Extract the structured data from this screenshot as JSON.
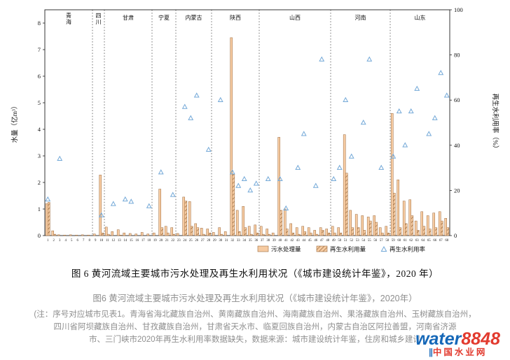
{
  "figure": {
    "caption_main": "图 6  黄河流域主要城市污水处理及再生水利用状况（《城市建设统计年鉴》，2020 年）",
    "caption_secondary": "图6 黄河流域主要城市污水处理及再生水利用状况（《城市建设统计年鉴》，2020年）",
    "note_lines": [
      "(注：序号对应城市见表1。青海省海北藏族自治州、黄南藏族自治州、海南藏族自治州、果洛藏族自治州、玉树藏族自治州，",
      "四川省阿坝藏族自治州、甘孜藏族自治州，甘肃省天水市、临夏回族自治州，内蒙古自治区阿拉善盟，河南省济源",
      "市、三门峡市2020年再生水利用率数据缺失，数据来源：城市建设统计年鉴，住房和城乡建设"
    ]
  },
  "watermark": {
    "brand_blue": "water",
    "brand_red": "8848",
    "bars": "∥",
    "tagline": "中国水业网",
    "color_blue": "#1668b8",
    "color_red": "#e23a2e"
  },
  "chart_data": {
    "type": "bar",
    "title": "",
    "ylabel_left": "水量（亿m³）",
    "ylabel_right": "再生水利用率（%）",
    "ylim_left": [
      0,
      8
    ],
    "ylim_right": [
      0,
      100
    ],
    "left_ticks": [
      0,
      1,
      2,
      3,
      4,
      5,
      6,
      7,
      8
    ],
    "right_ticks": [
      0,
      20,
      40,
      60,
      80,
      100
    ],
    "grid": false,
    "legend_position": "bottom",
    "x": [
      1,
      2,
      3,
      4,
      5,
      6,
      7,
      8,
      9,
      10,
      11,
      12,
      13,
      14,
      15,
      16,
      17,
      18,
      19,
      20,
      21,
      22,
      23,
      24,
      25,
      26,
      27,
      28,
      29,
      30,
      31,
      32,
      33,
      34,
      35,
      36,
      37,
      38,
      39,
      40,
      41,
      42,
      43,
      44,
      45,
      46,
      47,
      48,
      49,
      50,
      51,
      52,
      53,
      54,
      55,
      56,
      57,
      58,
      59,
      60,
      61,
      62,
      63,
      64,
      65,
      66,
      67,
      68
    ],
    "provinces": [
      {
        "name": "青海",
        "start": 1,
        "end": 8,
        "vertical": true
      },
      {
        "name": "四川",
        "start": 9,
        "end": 10,
        "vertical": true
      },
      {
        "name": "甘肃",
        "start": 11,
        "end": 18,
        "vertical": false
      },
      {
        "name": "宁夏",
        "start": 19,
        "end": 22,
        "vertical": false
      },
      {
        "name": "内蒙古",
        "start": 23,
        "end": 28,
        "vertical": false
      },
      {
        "name": "陕西",
        "start": 29,
        "end": 36,
        "vertical": false
      },
      {
        "name": "山西",
        "start": 37,
        "end": 48,
        "vertical": false
      },
      {
        "name": "河南",
        "start": 49,
        "end": 58,
        "vertical": false
      },
      {
        "name": "山东",
        "start": 59,
        "end": 68,
        "vertical": false
      }
    ],
    "series": [
      {
        "name": "污水处理量",
        "type": "bar",
        "axis": "left",
        "values": [
          1.2,
          0.18,
          0.03,
          0.02,
          0.03,
          0.02,
          0.03,
          0.02,
          0.06,
          2.28,
          0.32,
          0.15,
          0.22,
          0.1,
          0.08,
          0.06,
          0.12,
          0.06,
          0.1,
          1.75,
          0.35,
          0.3,
          0.08,
          1.45,
          1.28,
          0.45,
          0.28,
          0.25,
          0.12,
          0.3,
          0.15,
          7.45,
          0.95,
          1.1,
          0.35,
          0.4,
          0.35,
          0.25,
          0.1,
          3.7,
          1.0,
          0.45,
          0.3,
          0.35,
          0.3,
          0.2,
          0.3,
          0.25,
          0.35,
          0.3,
          3.8,
          0.95,
          0.8,
          0.75,
          0.7,
          0.75,
          0.3,
          0.35,
          4.6,
          2.1,
          1.3,
          1.35,
          0.55,
          0.9,
          0.75,
          0.85,
          0.9,
          0.65
        ]
      },
      {
        "name": "再生水利用量",
        "type": "bar-hatched",
        "axis": "left",
        "values": [
          1.25,
          0.05,
          0,
          0,
          0,
          0,
          0,
          0,
          0,
          0.1,
          0.05,
          0,
          0.02,
          0,
          0,
          0,
          0,
          0,
          0,
          0.3,
          0.1,
          0.05,
          0,
          1.3,
          0.35,
          0.3,
          0.05,
          0.1,
          0,
          0.05,
          0,
          2.3,
          0.15,
          0.3,
          0.05,
          0.1,
          0.05,
          0.05,
          0,
          0.95,
          0.25,
          0.1,
          0.05,
          0.15,
          0.1,
          0.05,
          0.2,
          0.1,
          0.1,
          0.1,
          2.35,
          0.3,
          0.3,
          0.2,
          0.55,
          0.5,
          0.1,
          0.1,
          1.6,
          0.3,
          0.45,
          0.75,
          0.2,
          0.35,
          0.25,
          0.3,
          0.55,
          0.3
        ]
      },
      {
        "name": "再生水利用率",
        "type": "scatter-triangle",
        "axis": "right",
        "values": [
          16,
          null,
          34,
          null,
          null,
          null,
          null,
          null,
          null,
          9,
          null,
          14,
          null,
          16,
          15,
          null,
          null,
          13,
          null,
          28,
          null,
          18,
          null,
          57,
          52,
          62,
          null,
          38,
          null,
          60,
          null,
          28,
          22,
          25,
          20,
          23,
          null,
          25,
          null,
          25,
          12,
          null,
          30,
          45,
          null,
          22,
          78,
          null,
          25,
          30,
          60,
          35,
          null,
          50,
          78,
          null,
          30,
          null,
          35,
          55,
          40,
          55,
          65,
          null,
          45,
          52,
          72,
          62
        ]
      }
    ],
    "colors": {
      "bar_fill": "#f6cba2",
      "bar_stroke": "#9c6b3f",
      "hatch_line": "#8a5a2b",
      "triangle": "#74a9d8",
      "axis": "#222222"
    }
  }
}
